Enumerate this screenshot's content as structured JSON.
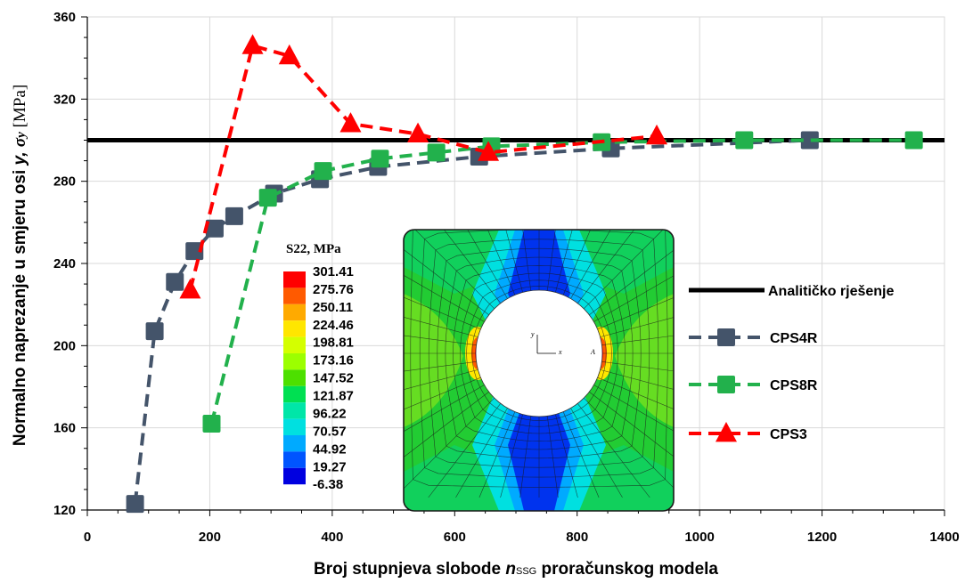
{
  "chart_data": {
    "type": "line",
    "title": "",
    "xlabel": {
      "prefix": "Broj stupnjeva slobode ",
      "var": "n",
      "sub": "SSG",
      "suffix": " proračunskog modela"
    },
    "ylabel": {
      "prefix": "Normalno naprezanje u smjeru osi ",
      "var": "y, ",
      "sym": "σ",
      "sub": "y",
      "suffix": " [MPa]"
    },
    "xlim": [
      0,
      1400
    ],
    "ylim": [
      120,
      360
    ],
    "xticks": [
      "0",
      "200",
      "400",
      "600",
      "800",
      "1000",
      "1200",
      "1400"
    ],
    "yticks": [
      "120",
      "160",
      "200",
      "240",
      "280",
      "320",
      "360"
    ],
    "grid": true,
    "legend_position": "right",
    "series": [
      {
        "name": "Analitičko rješenje",
        "color": "#000000",
        "style": "solid",
        "marker": "none",
        "x": [
          0,
          1400
        ],
        "y": [
          300,
          300
        ]
      },
      {
        "name": "CPS4R",
        "color": "#44546a",
        "style": "dashed",
        "marker": "square",
        "x": [
          78,
          110,
          143,
          175,
          208,
          240,
          305,
          380,
          475,
          640,
          855,
          1180
        ],
        "y": [
          123,
          207,
          231,
          246,
          257,
          263,
          274,
          281,
          287,
          292,
          296,
          300
        ]
      },
      {
        "name": "CPS8R",
        "color": "#22b14c",
        "style": "dashed",
        "marker": "square",
        "x": [
          203,
          295,
          385,
          478,
          570,
          660,
          840,
          1073,
          1350
        ],
        "y": [
          162,
          272,
          285,
          291,
          294,
          297,
          299,
          300,
          300
        ]
      },
      {
        "name": "CPS3",
        "color": "#ff0000",
        "style": "dashed",
        "marker": "triangle",
        "x": [
          168,
          270,
          330,
          430,
          540,
          655,
          930
        ],
        "y": [
          227,
          346,
          341,
          308,
          303,
          294,
          302
        ]
      }
    ],
    "inset": {
      "colorbar_title": "S22, MPa",
      "colorbar_values": [
        "301.41",
        "275.76",
        "250.11",
        "224.46",
        "198.81",
        "173.16",
        "147.52",
        "121.87",
        "96.22",
        "70.57",
        "44.92",
        "19.27",
        "-6.38"
      ],
      "colorbar_colors": [
        "#ff0000",
        "#ff5a00",
        "#ffaa00",
        "#ffe600",
        "#d4ff00",
        "#9cff00",
        "#4de000",
        "#00e052",
        "#00e6a8",
        "#00e0e0",
        "#00aaff",
        "#0055ff",
        "#0000e0"
      ],
      "axis_labels": {
        "y": "y",
        "x": "x",
        "point": "A"
      }
    }
  }
}
